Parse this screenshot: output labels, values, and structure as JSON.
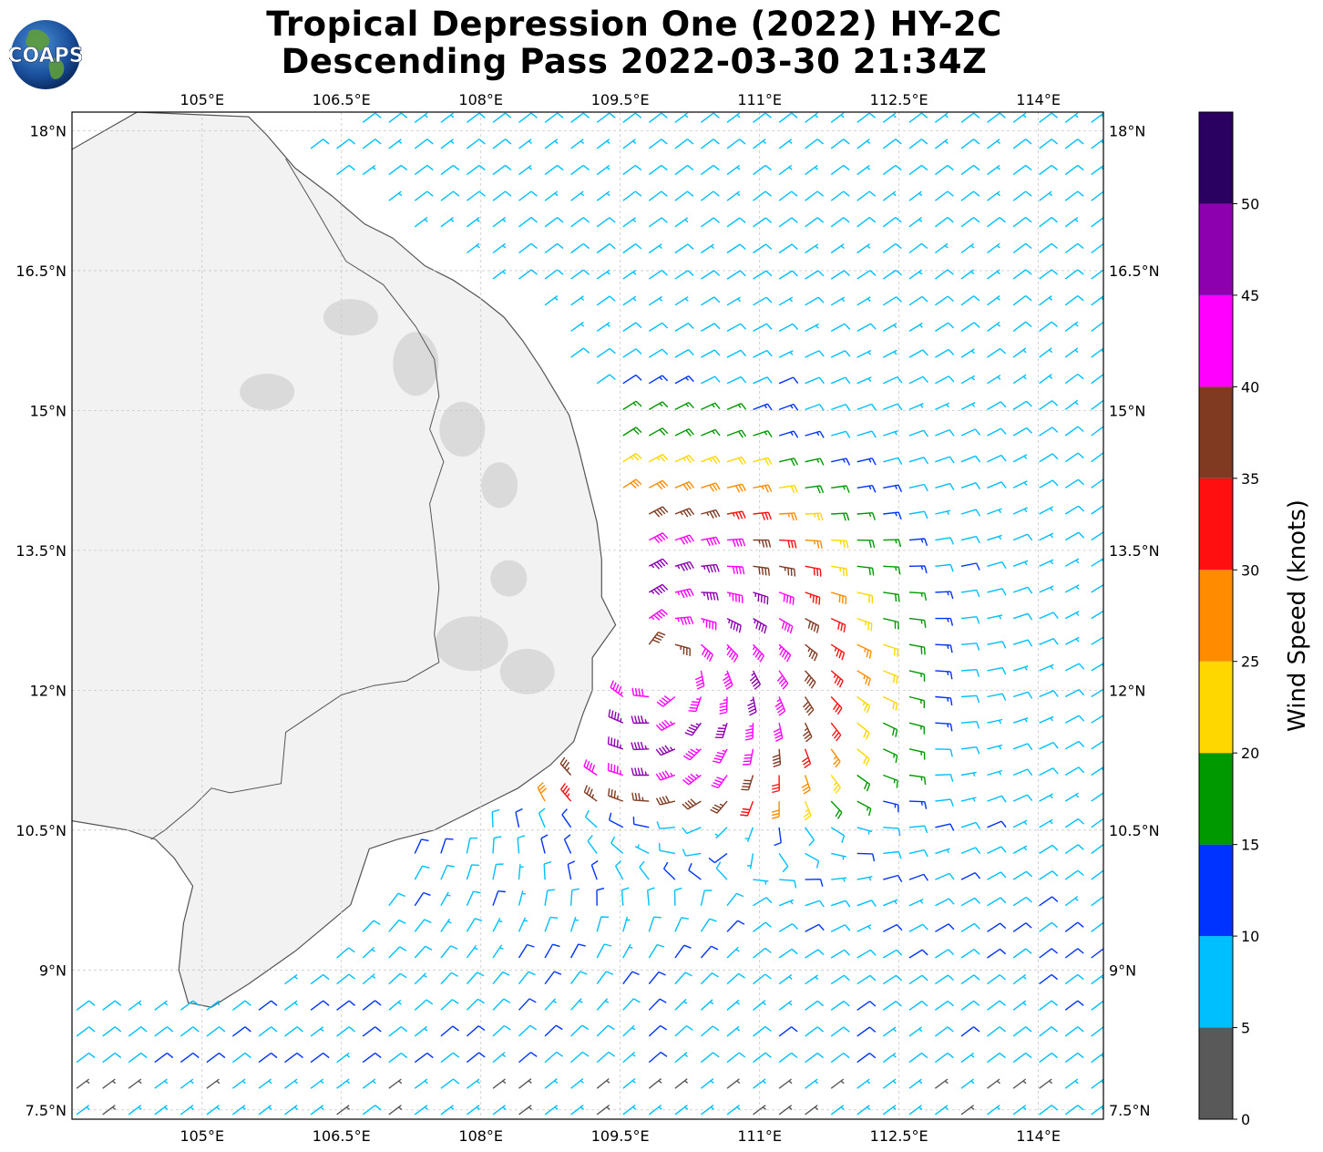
{
  "title": {
    "line1": "Tropical Depression One (2022) HY-2C",
    "line2": "Descending Pass 2022-03-30 21:34Z"
  },
  "logo": {
    "icon": "coaps-globe-logo",
    "text": "COAPS"
  },
  "map": {
    "lon_range": [
      103.6,
      114.7
    ],
    "lat_range": [
      7.4,
      18.2
    ],
    "lon_ticks": [
      {
        "value": 105.0,
        "label": "105°E"
      },
      {
        "value": 106.5,
        "label": "106.5°E"
      },
      {
        "value": 108.0,
        "label": "108°E"
      },
      {
        "value": 109.5,
        "label": "109.5°E"
      },
      {
        "value": 111.0,
        "label": "111°E"
      },
      {
        "value": 112.5,
        "label": "112.5°E"
      },
      {
        "value": 114.0,
        "label": "114°E"
      }
    ],
    "lat_ticks": [
      {
        "value": 18.0,
        "label": "18°N"
      },
      {
        "value": 16.5,
        "label": "16.5°N"
      },
      {
        "value": 15.0,
        "label": "15°N"
      },
      {
        "value": 13.5,
        "label": "13.5°N"
      },
      {
        "value": 12.0,
        "label": "12°N"
      },
      {
        "value": 10.5,
        "label": "10.5°N"
      },
      {
        "value": 9.0,
        "label": "9°N"
      },
      {
        "value": 7.5,
        "label": "7.5°N"
      }
    ],
    "gridlines": true,
    "storm_center": {
      "lon": 109.95,
      "lat": 12.3
    },
    "coast": [
      [
        103.6,
        17.8
      ],
      [
        104.3,
        18.2
      ],
      [
        105.5,
        18.15
      ],
      [
        105.7,
        17.95
      ],
      [
        106.0,
        17.6
      ],
      [
        106.4,
        17.3
      ],
      [
        106.75,
        17.0
      ],
      [
        107.05,
        16.85
      ],
      [
        107.4,
        16.55
      ],
      [
        107.7,
        16.4
      ],
      [
        108.0,
        16.2
      ],
      [
        108.25,
        16.0
      ],
      [
        108.45,
        15.75
      ],
      [
        108.65,
        15.45
      ],
      [
        108.8,
        15.2
      ],
      [
        108.95,
        14.95
      ],
      [
        109.05,
        14.6
      ],
      [
        109.15,
        14.2
      ],
      [
        109.25,
        13.8
      ],
      [
        109.3,
        13.4
      ],
      [
        109.3,
        13.0
      ],
      [
        109.45,
        12.7
      ],
      [
        109.2,
        12.35
      ],
      [
        109.2,
        12.0
      ],
      [
        109.1,
        11.75
      ],
      [
        109.0,
        11.45
      ],
      [
        108.75,
        11.2
      ],
      [
        108.4,
        10.95
      ],
      [
        108.1,
        10.8
      ],
      [
        107.8,
        10.65
      ],
      [
        107.5,
        10.5
      ],
      [
        107.1,
        10.4
      ],
      [
        106.8,
        10.3
      ],
      [
        106.7,
        10.0
      ],
      [
        106.6,
        9.7
      ],
      [
        106.3,
        9.45
      ],
      [
        106.0,
        9.2
      ],
      [
        105.5,
        8.85
      ],
      [
        105.1,
        8.6
      ],
      [
        104.85,
        8.65
      ],
      [
        104.75,
        9.0
      ],
      [
        104.8,
        9.5
      ],
      [
        104.9,
        9.9
      ],
      [
        104.7,
        10.2
      ],
      [
        104.5,
        10.4
      ],
      [
        104.2,
        10.5
      ],
      [
        103.6,
        10.6
      ]
    ],
    "border": [
      [
        105.9,
        17.7
      ],
      [
        106.2,
        17.2
      ],
      [
        106.55,
        16.6
      ],
      [
        106.95,
        16.35
      ],
      [
        107.3,
        15.9
      ],
      [
        107.5,
        15.55
      ],
      [
        107.55,
        15.15
      ],
      [
        107.45,
        14.8
      ],
      [
        107.6,
        14.45
      ],
      [
        107.45,
        14.0
      ],
      [
        107.5,
        13.6
      ],
      [
        107.55,
        13.1
      ],
      [
        107.5,
        12.6
      ],
      [
        107.55,
        12.3
      ],
      [
        107.2,
        12.1
      ],
      [
        106.85,
        12.05
      ],
      [
        106.5,
        11.95
      ],
      [
        106.2,
        11.75
      ],
      [
        105.9,
        11.55
      ],
      [
        105.85,
        11.0
      ],
      [
        105.3,
        10.9
      ],
      [
        105.1,
        10.95
      ],
      [
        104.9,
        10.75
      ],
      [
        104.6,
        10.5
      ],
      [
        104.45,
        10.4
      ]
    ],
    "terrain": [
      {
        "lon": 105.7,
        "lat": 15.2,
        "rx": 30,
        "ry": 20
      },
      {
        "lon": 107.3,
        "lat": 15.5,
        "rx": 25,
        "ry": 35
      },
      {
        "lon": 107.8,
        "lat": 14.8,
        "rx": 25,
        "ry": 30
      },
      {
        "lon": 108.2,
        "lat": 14.2,
        "rx": 20,
        "ry": 25
      },
      {
        "lon": 106.6,
        "lat": 16.0,
        "rx": 30,
        "ry": 20
      },
      {
        "lon": 108.5,
        "lat": 12.2,
        "rx": 30,
        "ry": 25
      },
      {
        "lon": 107.9,
        "lat": 12.5,
        "rx": 40,
        "ry": 30
      },
      {
        "lon": 108.3,
        "lat": 13.2,
        "rx": 20,
        "ry": 20
      }
    ]
  },
  "colorbar": {
    "title": "Wind Speed (knots)",
    "bins": [
      {
        "min": 0,
        "max": 5,
        "color": "#595959"
      },
      {
        "min": 5,
        "max": 10,
        "color": "#00bfff"
      },
      {
        "min": 10,
        "max": 15,
        "color": "#0033ff"
      },
      {
        "min": 15,
        "max": 20,
        "color": "#009900"
      },
      {
        "min": 20,
        "max": 25,
        "color": "#ffd700"
      },
      {
        "min": 25,
        "max": 30,
        "color": "#ff8c00"
      },
      {
        "min": 30,
        "max": 35,
        "color": "#ff0f0f"
      },
      {
        "min": 35,
        "max": 40,
        "color": "#803a22"
      },
      {
        "min": 40,
        "max": 45,
        "color": "#ff00ff"
      },
      {
        "min": 45,
        "max": 50,
        "color": "#8c00b0"
      },
      {
        "min": 50,
        "max": 55,
        "color": "#2a0060"
      }
    ],
    "tick_labels": [
      "0",
      "5",
      "10",
      "15",
      "20",
      "25",
      "30",
      "35",
      "40",
      "45",
      "50"
    ]
  },
  "colors": {
    "land": "#f2f2f2",
    "coastline": "#555555",
    "grid": "#c8c8c8"
  }
}
